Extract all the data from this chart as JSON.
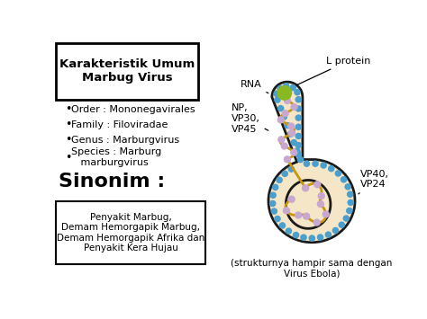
{
  "title": "Karakteristik Umum\nMarbug Virus",
  "bullets": [
    "Order : Mononegavirales",
    "Family : Filoviradae",
    "Genus : Marburgvirus",
    "Species : Marburg\n   marburgvirus"
  ],
  "sinonim_title": "Sinonim :",
  "sinonim_box": "Penyakit Marbug,\nDemam Hemorgapik Marbug,\nDemam Hemorgapik Afrika dan\nPenyakit Kera Hujau",
  "caption": "(strukturnya hampir sama dengan\nVirus Ebola)",
  "labels": {
    "RNA": "RNA",
    "L_protein": "L protein",
    "NP": "NP,\nVP30,\nVP45",
    "VP40": "VP40,\nVP24"
  },
  "bg_color": "#ffffff",
  "body_color": "#f5e6c8",
  "outline_color": "#1a1a1a",
  "spike_color": "#4b9fcc",
  "rna_color": "#c8960a",
  "purple_dot_color": "#c8a8d0",
  "green_dot_color": "#8ab820"
}
